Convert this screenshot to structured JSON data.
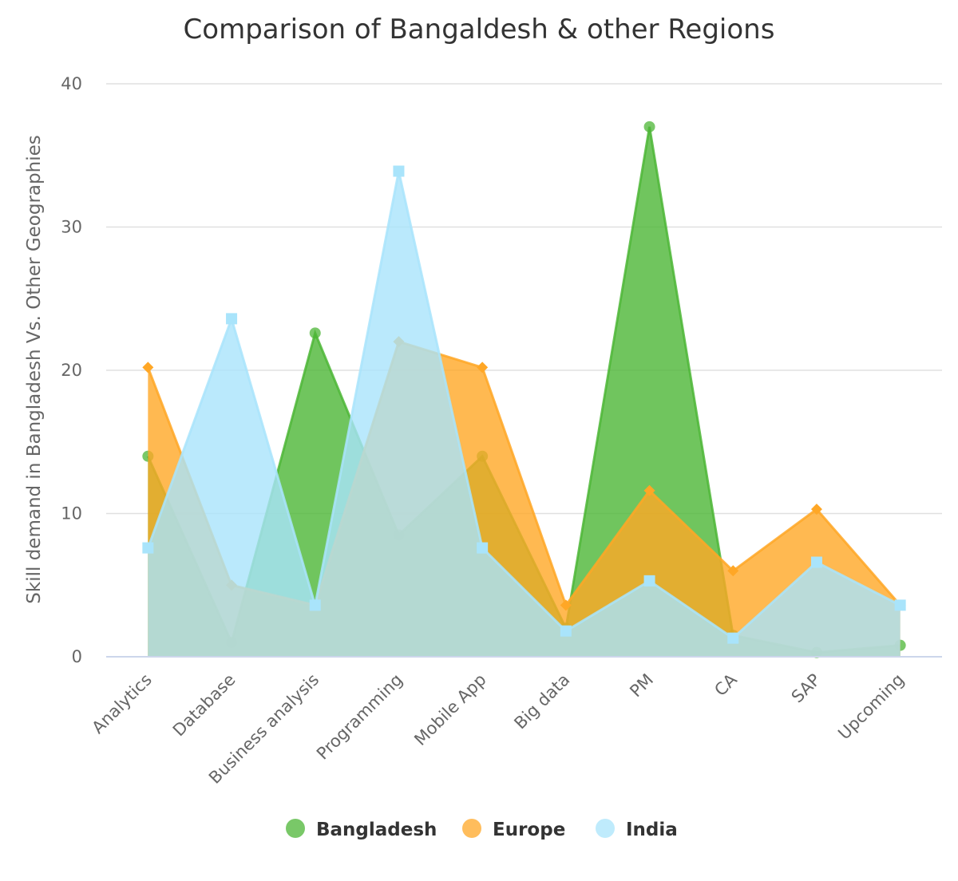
{
  "chart_data": {
    "type": "area",
    "title": "Comparison of Bangaldesh & other Regions",
    "xlabel": "",
    "ylabel": "Skill demand in Bangladesh Vs. Other Geographies",
    "ylim": [
      0,
      40
    ],
    "yticks": [
      0,
      10,
      20,
      30,
      40
    ],
    "grid": true,
    "legend_position": "bottom",
    "categories": [
      "Analytics",
      "Database",
      "Business analysis",
      "Programming",
      "Mobile App",
      "Big data",
      "PM",
      "CA",
      "SAP",
      "Upcoming"
    ],
    "series": [
      {
        "name": "Bangladesh",
        "color": "#4cb636",
        "marker": "circle",
        "values": [
          14,
          1,
          22.6,
          8.5,
          14,
          2,
          37,
          1.5,
          0.3,
          0.8
        ]
      },
      {
        "name": "Europe",
        "color": "#ffa726",
        "marker": "diamond",
        "values": [
          20.2,
          5,
          3.6,
          22,
          20.2,
          3.6,
          11.6,
          6,
          10.3,
          3.6
        ]
      },
      {
        "name": "India",
        "color": "#a9e4fb",
        "marker": "square",
        "values": [
          7.6,
          23.6,
          3.6,
          33.9,
          7.6,
          1.8,
          5.3,
          1.3,
          6.6,
          3.6
        ]
      }
    ]
  }
}
